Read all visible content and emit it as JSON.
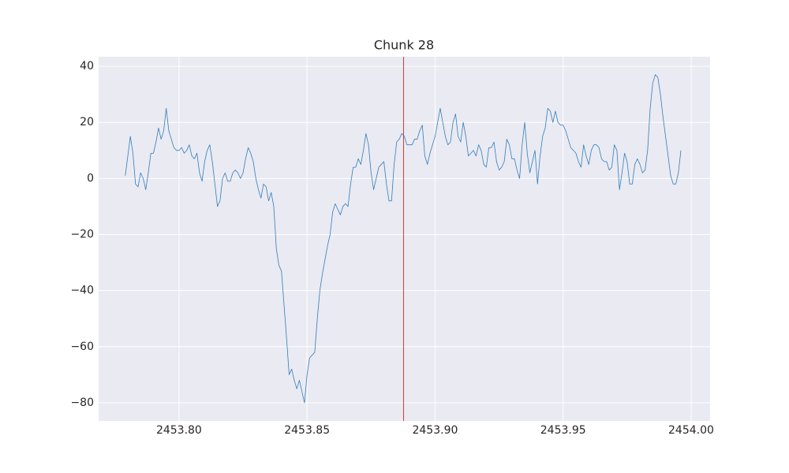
{
  "chart_data": {
    "type": "line",
    "title": "Chunk 28",
    "x": [
      2453.779,
      2453.78,
      2453.781,
      2453.782,
      2453.783,
      2453.784,
      2453.785,
      2453.786,
      2453.787,
      2453.788,
      2453.789,
      2453.79,
      2453.791,
      2453.792,
      2453.793,
      2453.794,
      2453.795,
      2453.796,
      2453.797,
      2453.798,
      2453.799,
      2453.8,
      2453.801,
      2453.802,
      2453.803,
      2453.804,
      2453.805,
      2453.806,
      2453.807,
      2453.808,
      2453.809,
      2453.81,
      2453.811,
      2453.812,
      2453.813,
      2453.814,
      2453.815,
      2453.816,
      2453.817,
      2453.818,
      2453.819,
      2453.82,
      2453.821,
      2453.822,
      2453.823,
      2453.824,
      2453.825,
      2453.826,
      2453.827,
      2453.828,
      2453.829,
      2453.83,
      2453.831,
      2453.832,
      2453.833,
      2453.834,
      2453.835,
      2453.836,
      2453.837,
      2453.838,
      2453.839,
      2453.84,
      2453.841,
      2453.842,
      2453.843,
      2453.844,
      2453.845,
      2453.846,
      2453.847,
      2453.848,
      2453.849,
      2453.85,
      2453.851,
      2453.852,
      2453.853,
      2453.854,
      2453.855,
      2453.856,
      2453.857,
      2453.858,
      2453.859,
      2453.86,
      2453.861,
      2453.862,
      2453.863,
      2453.864,
      2453.865,
      2453.866,
      2453.867,
      2453.868,
      2453.869,
      2453.87,
      2453.871,
      2453.872,
      2453.873,
      2453.874,
      2453.875,
      2453.876,
      2453.877,
      2453.878,
      2453.879,
      2453.88,
      2453.881,
      2453.882,
      2453.883,
      2453.884,
      2453.885,
      2453.886,
      2453.887,
      2453.888,
      2453.889,
      2453.89,
      2453.891,
      2453.892,
      2453.893,
      2453.894,
      2453.895,
      2453.896,
      2453.897,
      2453.898,
      2453.899,
      2453.9,
      2453.901,
      2453.902,
      2453.903,
      2453.904,
      2453.905,
      2453.906,
      2453.907,
      2453.908,
      2453.909,
      2453.91,
      2453.911,
      2453.912,
      2453.913,
      2453.914,
      2453.915,
      2453.916,
      2453.917,
      2453.918,
      2453.919,
      2453.92,
      2453.921,
      2453.922,
      2453.923,
      2453.924,
      2453.925,
      2453.926,
      2453.927,
      2453.928,
      2453.929,
      2453.93,
      2453.931,
      2453.932,
      2453.933,
      2453.934,
      2453.935,
      2453.936,
      2453.937,
      2453.938,
      2453.939,
      2453.94,
      2453.941,
      2453.942,
      2453.943,
      2453.944,
      2453.945,
      2453.946,
      2453.947,
      2453.948,
      2453.949,
      2453.95,
      2453.951,
      2453.952,
      2453.953,
      2453.954,
      2453.955,
      2453.956,
      2453.957,
      2453.958,
      2453.959,
      2453.96,
      2453.961,
      2453.962,
      2453.963,
      2453.964,
      2453.965,
      2453.966,
      2453.967,
      2453.968,
      2453.969,
      2453.97,
      2453.971,
      2453.972,
      2453.973,
      2453.974,
      2453.975,
      2453.976,
      2453.977,
      2453.978,
      2453.979,
      2453.98,
      2453.981,
      2453.982,
      2453.983,
      2453.984,
      2453.985,
      2453.986,
      2453.987,
      2453.988,
      2453.989,
      2453.99,
      2453.991,
      2453.992,
      2453.993,
      2453.994,
      2453.995,
      2453.996
    ],
    "series": [
      {
        "color": "#2f7ebc",
        "values": [
          1,
          8,
          15,
          9,
          -2,
          -3,
          2,
          0,
          -4,
          2,
          9,
          9,
          13,
          18,
          14,
          17,
          25,
          17,
          14,
          11,
          10,
          10,
          11,
          9,
          10,
          12,
          8,
          7,
          9,
          2,
          -1,
          6,
          10,
          12,
          6,
          -2,
          -10,
          -8,
          0,
          2,
          -1,
          -1,
          2,
          3,
          2,
          0,
          2,
          7,
          11,
          9,
          6,
          0,
          -4,
          -7,
          -2,
          -3,
          -8,
          -5,
          -10,
          -25,
          -31,
          -33,
          -45,
          -57,
          -70,
          -68,
          -72,
          -75,
          -72,
          -76,
          -80,
          -70,
          -64,
          -63,
          -62,
          -50,
          -40,
          -34,
          -29,
          -24,
          -20,
          -12,
          -9,
          -11,
          -13,
          -10,
          -9,
          -10,
          -2,
          4,
          4,
          7,
          5,
          10,
          16,
          12,
          2,
          -4,
          0,
          4,
          5,
          6,
          -2,
          -8,
          -8,
          5,
          13,
          14,
          16,
          15,
          12,
          12,
          12,
          14,
          14,
          17,
          19,
          8,
          5,
          9,
          12,
          15,
          20,
          25,
          20,
          15,
          12,
          13,
          20,
          23,
          15,
          13,
          20,
          15,
          8,
          9,
          10,
          8,
          12,
          10,
          5,
          4,
          11,
          11,
          13,
          6,
          3,
          4,
          6,
          14,
          12,
          7,
          7,
          3,
          0,
          12,
          20,
          9,
          2,
          6,
          10,
          -2,
          8,
          15,
          18,
          25,
          24,
          20,
          24,
          20,
          19,
          19,
          17,
          14,
          11,
          10,
          9,
          6,
          4,
          12,
          8,
          5,
          10,
          12,
          12,
          11,
          7,
          6,
          6,
          3,
          4,
          12,
          10,
          -4,
          2,
          9,
          6,
          -2,
          -2,
          5,
          7,
          5,
          2,
          3,
          10,
          25,
          34,
          37,
          36,
          30,
          22,
          15,
          8,
          1,
          -2,
          -2,
          2,
          10
        ]
      }
    ],
    "vline": {
      "value": 2453.8877,
      "color": "#e3342f"
    },
    "xlim": [
      2453.7686,
      2454.0074
    ],
    "ylim": [
      -86.5,
      43.4
    ],
    "xticks": [
      {
        "value": 2453.8,
        "label": "2453.80"
      },
      {
        "value": 2453.85,
        "label": "2453.85"
      },
      {
        "value": 2453.9,
        "label": "2453.90"
      },
      {
        "value": 2453.95,
        "label": "2453.95"
      },
      {
        "value": 2454,
        "label": "2454.00"
      }
    ],
    "yticks": [
      {
        "value": -80,
        "label": "−80"
      },
      {
        "value": -60,
        "label": "−60"
      },
      {
        "value": -40,
        "label": "−40"
      },
      {
        "value": -20,
        "label": "−20"
      },
      0,
      20,
      40
    ],
    "grid": true
  }
}
